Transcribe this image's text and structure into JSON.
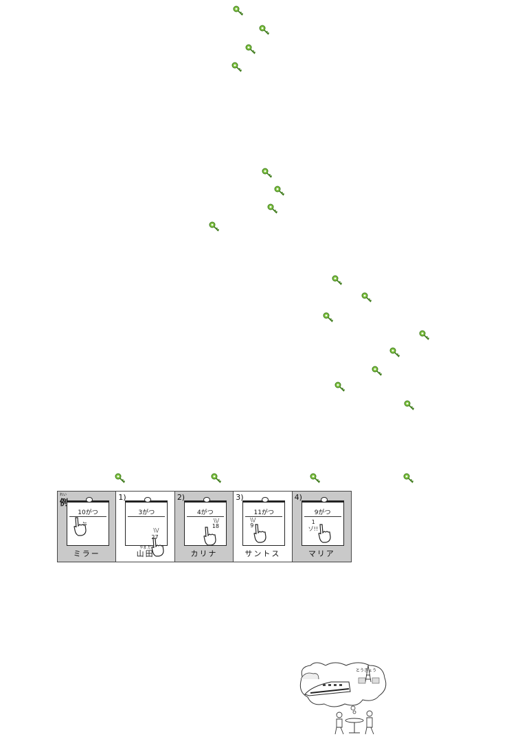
{
  "key_icon_color": "#5aa02c",
  "example_strip": {
    "panels": [
      {
        "label": "例",
        "label_small": "れい",
        "month": "10がつ",
        "name": "ミラー",
        "shaded": true
      },
      {
        "label": "1)",
        "month": "3がつ",
        "day": "27",
        "name": "山田",
        "name_furigana": "やま だ",
        "shaded": false
      },
      {
        "label": "2)",
        "month": "4がつ",
        "day": "18",
        "name": "カリナ",
        "shaded": true
      },
      {
        "label": "3)",
        "month": "11がつ",
        "day": "9",
        "name": "サントス",
        "shaded": false
      },
      {
        "label": "4)",
        "month": "9がつ",
        "day": "1",
        "name": "マリア",
        "shaded": true
      }
    ]
  },
  "illustration": {
    "speech_text": "とうきょう"
  }
}
